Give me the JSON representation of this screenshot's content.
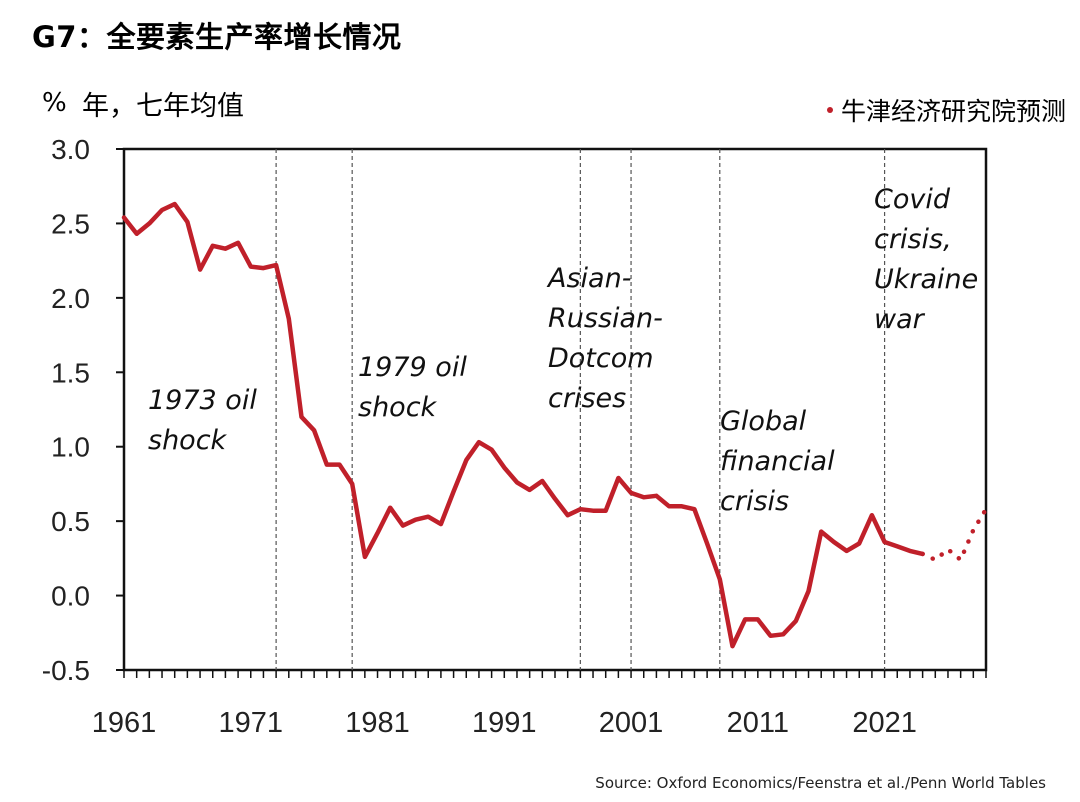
{
  "header": {
    "title": "G7：全要素生产率增长情况",
    "unit_symbol": "%",
    "unit_text": "年，七年均值"
  },
  "legend": {
    "label": "牛津经济研究院预测"
  },
  "source": "Source: Oxford Economics/Feenstra et al./Penn World Tables",
  "colors": {
    "line": "#c0202a",
    "axis": "#111111",
    "vline": "#555555"
  },
  "chart_data": {
    "type": "line",
    "title": "G7：全要素生产率增长情况",
    "ylabel": "% 年，七年均值",
    "ylim": [
      -0.5,
      3.0
    ],
    "xlim": [
      1961,
      2029
    ],
    "yticks": [
      "3.0",
      "2.5",
      "2.0",
      "1.5",
      "1.0",
      "0.5",
      "0.0",
      "-0.5"
    ],
    "xticks": [
      "1961",
      "1971",
      "1981",
      "1991",
      "2001",
      "2011",
      "2021"
    ],
    "grid": false,
    "legend_position": "top-right",
    "series": [
      {
        "name": "",
        "style": "solid",
        "x": [
          1961,
          1962,
          1963,
          1964,
          1965,
          1966,
          1967,
          1968,
          1969,
          1970,
          1971,
          1972,
          1973,
          1974,
          1975,
          1976,
          1977,
          1978,
          1979,
          1980,
          1981,
          1982,
          1983,
          1984,
          1985,
          1986,
          1987,
          1988,
          1989,
          1990,
          1991,
          1992,
          1993,
          1994,
          1995,
          1996,
          1997,
          1998,
          1999,
          2000,
          2001,
          2002,
          2003,
          2004,
          2005,
          2006,
          2007,
          2008,
          2009,
          2010,
          2011,
          2012,
          2013,
          2014,
          2015,
          2016,
          2017,
          2018,
          2019,
          2020,
          2021,
          2022,
          2023,
          2024
        ],
        "values": [
          2.54,
          2.43,
          2.5,
          2.59,
          2.63,
          2.51,
          2.19,
          2.35,
          2.33,
          2.37,
          2.21,
          2.2,
          2.22,
          1.86,
          1.2,
          1.11,
          0.88,
          0.88,
          0.75,
          0.26,
          0.42,
          0.59,
          0.47,
          0.51,
          0.53,
          0.48,
          0.7,
          0.91,
          1.03,
          0.98,
          0.86,
          0.76,
          0.71,
          0.77,
          0.65,
          0.54,
          0.58,
          0.57,
          0.57,
          0.79,
          0.69,
          0.66,
          0.67,
          0.6,
          0.6,
          0.58,
          0.35,
          0.11,
          -0.34,
          -0.16,
          -0.16,
          -0.27,
          -0.26,
          -0.17,
          0.03,
          0.43,
          0.36,
          0.3,
          0.35,
          0.54,
          0.36,
          0.33,
          0.3,
          0.28
        ]
      },
      {
        "name": "牛津经济研究院预测",
        "style": "dotted",
        "x": [
          2024,
          2025,
          2026,
          2027,
          2028,
          2029
        ],
        "values": [
          0.28,
          0.24,
          0.31,
          0.24,
          0.44,
          0.58
        ]
      }
    ],
    "vlines": [
      1973,
      1979,
      1997,
      2001,
      2008,
      2021
    ],
    "annotations": [
      {
        "year": 1973,
        "lines": [
          "1973 oil",
          "shock"
        ]
      },
      {
        "year": 1979,
        "lines": [
          "1979 oil",
          "shock"
        ]
      },
      {
        "year": 1997,
        "lines": [
          "Asian-",
          "Russian-",
          "Dotcom",
          "crises"
        ]
      },
      {
        "year": 2008,
        "lines": [
          "Global",
          "financial",
          "crisis"
        ]
      },
      {
        "year": 2021,
        "lines": [
          "Covid",
          "crisis,",
          "Ukraine",
          "war"
        ]
      }
    ]
  }
}
